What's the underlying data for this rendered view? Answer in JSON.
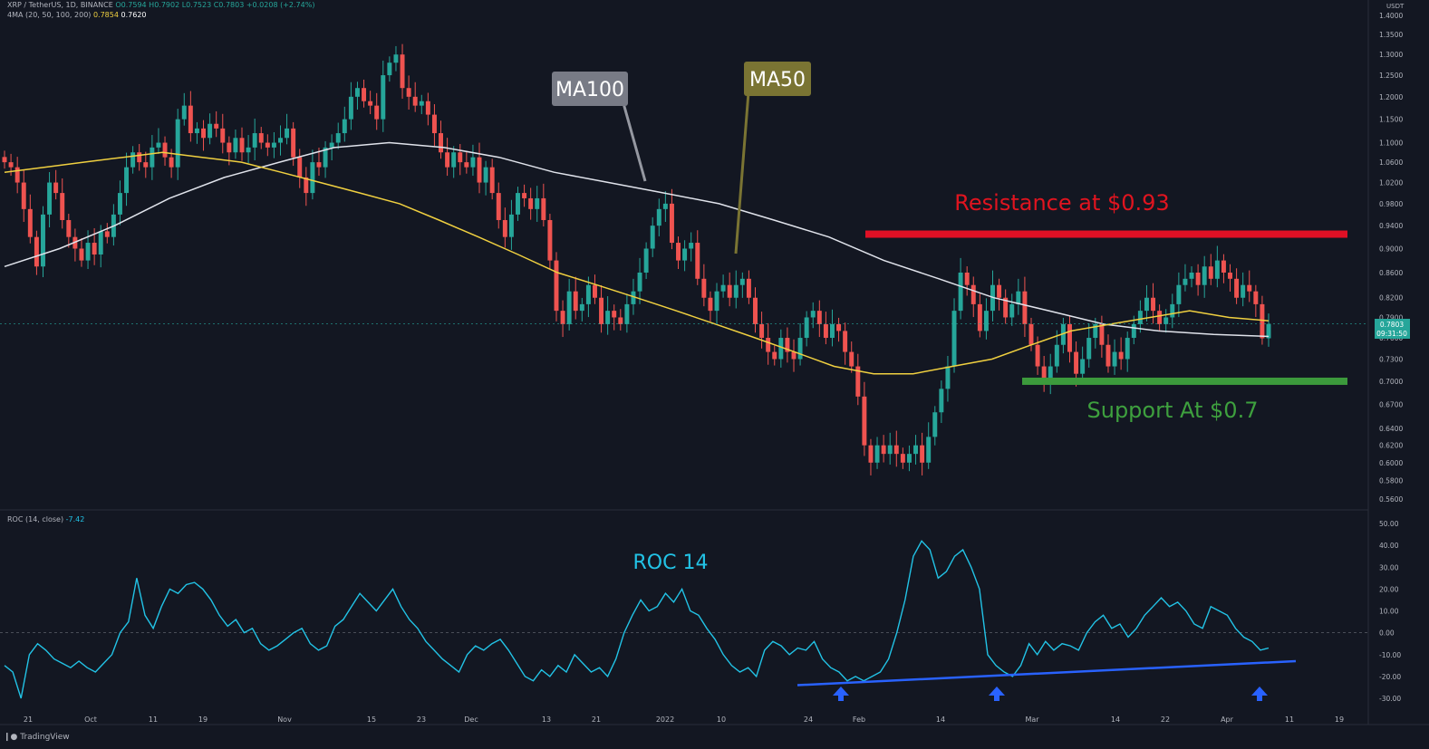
{
  "header": {
    "symbol": "XRP / TetherUS, 1D, BINANCE",
    "ohlc": "O0.7594 H0.7902 L0.7523 C0.7803 +0.0208 (+2.74%)",
    "ma_label": "4MA (20, 50, 100, 200)",
    "ma50_value": "0.7854",
    "ma100_value": "0.7620",
    "roc_label": "ROC (14, close)",
    "roc_value": "-7.42",
    "currency": "USDT",
    "brand": "TradingView"
  },
  "colors": {
    "background": "#131722",
    "up_candle": "#26a69a",
    "down_candle": "#ef5350",
    "ma50": "#f0d040",
    "ma100": "#e0e3eb",
    "roc": "#22c3e6",
    "resistance": "#e01025",
    "support": "#3c9a3c",
    "trendline": "#2962ff"
  },
  "chart_data": [
    {
      "type": "candlestick",
      "ylim": [
        0.55,
        1.4
      ],
      "y_scale": "log",
      "y_ticks": [
        "1.4000",
        "1.3500",
        "1.3000",
        "1.2500",
        "1.2000",
        "1.1500",
        "1.1000",
        "1.0600",
        "1.0200",
        "0.9800",
        "0.9400",
        "0.9000",
        "0.8600",
        "0.8200",
        "0.7900",
        "0.7600",
        "0.7300",
        "0.7000",
        "0.6700",
        "0.6400",
        "0.6200",
        "0.6000",
        "0.5800",
        "0.5600"
      ],
      "x_ticks": [
        "21",
        "Oct",
        "11",
        "19",
        "Nov",
        "15",
        "23",
        "Dec",
        "13",
        "21",
        "2022",
        "10",
        "24",
        "Feb",
        "14",
        "Mar",
        "14",
        "22",
        "Apr",
        "11",
        "19"
      ],
      "price_label": "0.7803",
      "countdown_label": "09:31:50",
      "annotations": {
        "resistance": "Resistance at $0.93",
        "support": "Support At $0.7",
        "ma100": "MA100",
        "ma50": "MA50"
      },
      "levels": {
        "resistance": 0.925,
        "support": 0.7
      },
      "candles_close": [
        1.06,
        1.05,
        1.02,
        0.97,
        0.92,
        0.87,
        0.96,
        1.02,
        1.0,
        0.95,
        0.92,
        0.9,
        0.88,
        0.91,
        0.89,
        0.93,
        0.92,
        0.96,
        1.0,
        1.05,
        1.08,
        1.06,
        1.05,
        1.09,
        1.1,
        1.07,
        1.05,
        1.15,
        1.18,
        1.12,
        1.13,
        1.11,
        1.14,
        1.13,
        1.1,
        1.08,
        1.11,
        1.08,
        1.09,
        1.12,
        1.1,
        1.09,
        1.1,
        1.11,
        1.13,
        1.07,
        1.03,
        1.0,
        1.06,
        1.05,
        1.09,
        1.1,
        1.12,
        1.15,
        1.2,
        1.22,
        1.19,
        1.18,
        1.15,
        1.25,
        1.28,
        1.3,
        1.22,
        1.2,
        1.18,
        1.19,
        1.16,
        1.12,
        1.08,
        1.05,
        1.08,
        1.06,
        1.05,
        1.07,
        1.02,
        1.05,
        1.0,
        0.95,
        0.92,
        0.96,
        1.0,
        0.99,
        0.97,
        0.99,
        0.95,
        0.88,
        0.8,
        0.78,
        0.83,
        0.8,
        0.81,
        0.84,
        0.82,
        0.78,
        0.8,
        0.79,
        0.78,
        0.81,
        0.83,
        0.86,
        0.9,
        0.94,
        0.97,
        0.98,
        0.91,
        0.88,
        0.9,
        0.91,
        0.85,
        0.82,
        0.8,
        0.83,
        0.84,
        0.82,
        0.84,
        0.85,
        0.82,
        0.78,
        0.76,
        0.74,
        0.73,
        0.76,
        0.74,
        0.73,
        0.76,
        0.79,
        0.8,
        0.78,
        0.76,
        0.78,
        0.77,
        0.74,
        0.72,
        0.68,
        0.62,
        0.6,
        0.62,
        0.61,
        0.62,
        0.61,
        0.6,
        0.61,
        0.62,
        0.6,
        0.63,
        0.66,
        0.69,
        0.72,
        0.8,
        0.86,
        0.84,
        0.81,
        0.77,
        0.8,
        0.84,
        0.82,
        0.79,
        0.81,
        0.83,
        0.78,
        0.75,
        0.72,
        0.7,
        0.72,
        0.75,
        0.78,
        0.74,
        0.71,
        0.73,
        0.76,
        0.78,
        0.75,
        0.72,
        0.74,
        0.73,
        0.76,
        0.78,
        0.8,
        0.82,
        0.8,
        0.78,
        0.79,
        0.81,
        0.84,
        0.85,
        0.86,
        0.84,
        0.87,
        0.85,
        0.88,
        0.86,
        0.85,
        0.82,
        0.84,
        0.83,
        0.81,
        0.7594,
        0.7803
      ],
      "ma50": [
        1.04,
        1.05,
        1.06,
        1.07,
        1.08,
        1.07,
        1.06,
        1.04,
        1.02,
        1.0,
        0.98,
        0.95,
        0.92,
        0.89,
        0.86,
        0.84,
        0.82,
        0.8,
        0.78,
        0.76,
        0.74,
        0.72,
        0.71,
        0.71,
        0.72,
        0.73,
        0.75,
        0.77,
        0.78,
        0.79,
        0.8,
        0.79,
        0.785
      ],
      "ma100": [
        0.87,
        0.9,
        0.94,
        0.99,
        1.03,
        1.06,
        1.09,
        1.1,
        1.09,
        1.07,
        1.04,
        1.02,
        1.0,
        0.98,
        0.95,
        0.92,
        0.88,
        0.85,
        0.82,
        0.8,
        0.78,
        0.77,
        0.765,
        0.762
      ]
    },
    {
      "type": "line",
      "series": [
        {
          "name": "ROC 14"
        }
      ],
      "title": "ROC 14",
      "ylim": [
        -34,
        52
      ],
      "y_ticks": [
        "50.00",
        "40.00",
        "30.00",
        "20.00",
        "10.00",
        "0.00",
        "-10.00",
        "-20.00",
        "-30.00"
      ],
      "values": [
        -15,
        -18,
        -30,
        -10,
        -5,
        -8,
        -12,
        -14,
        -16,
        -13,
        -16,
        -18,
        -14,
        -10,
        0,
        5,
        25,
        8,
        2,
        12,
        20,
        18,
        22,
        23,
        20,
        15,
        8,
        3,
        6,
        0,
        2,
        -5,
        -8,
        -6,
        -3,
        0,
        2,
        -5,
        -8,
        -6,
        3,
        6,
        12,
        18,
        14,
        10,
        15,
        20,
        12,
        6,
        2,
        -4,
        -8,
        -12,
        -15,
        -18,
        -10,
        -6,
        -8,
        -5,
        -3,
        -8,
        -14,
        -20,
        -22,
        -17,
        -20,
        -15,
        -18,
        -10,
        -14,
        -18,
        -16,
        -20,
        -12,
        0,
        8,
        15,
        10,
        12,
        18,
        14,
        20,
        10,
        8,
        2,
        -3,
        -10,
        -15,
        -18,
        -16,
        -20,
        -8,
        -4,
        -6,
        -10,
        -7,
        -8,
        -4,
        -12,
        -16,
        -18,
        -22,
        -20,
        -22,
        -20,
        -18,
        -12,
        0,
        15,
        35,
        42,
        38,
        25,
        28,
        35,
        38,
        30,
        20,
        -10,
        -15,
        -18,
        -20,
        -15,
        -5,
        -10,
        -4,
        -8,
        -5,
        -6,
        -8,
        0,
        5,
        8,
        2,
        4,
        -2,
        2,
        8,
        12,
        16,
        12,
        14,
        10,
        4,
        2,
        12,
        10,
        8,
        2,
        -2,
        -4,
        -8,
        -7
      ],
      "trendline": {
        "from": -24,
        "to": -13
      },
      "arrows": 3
    }
  ]
}
